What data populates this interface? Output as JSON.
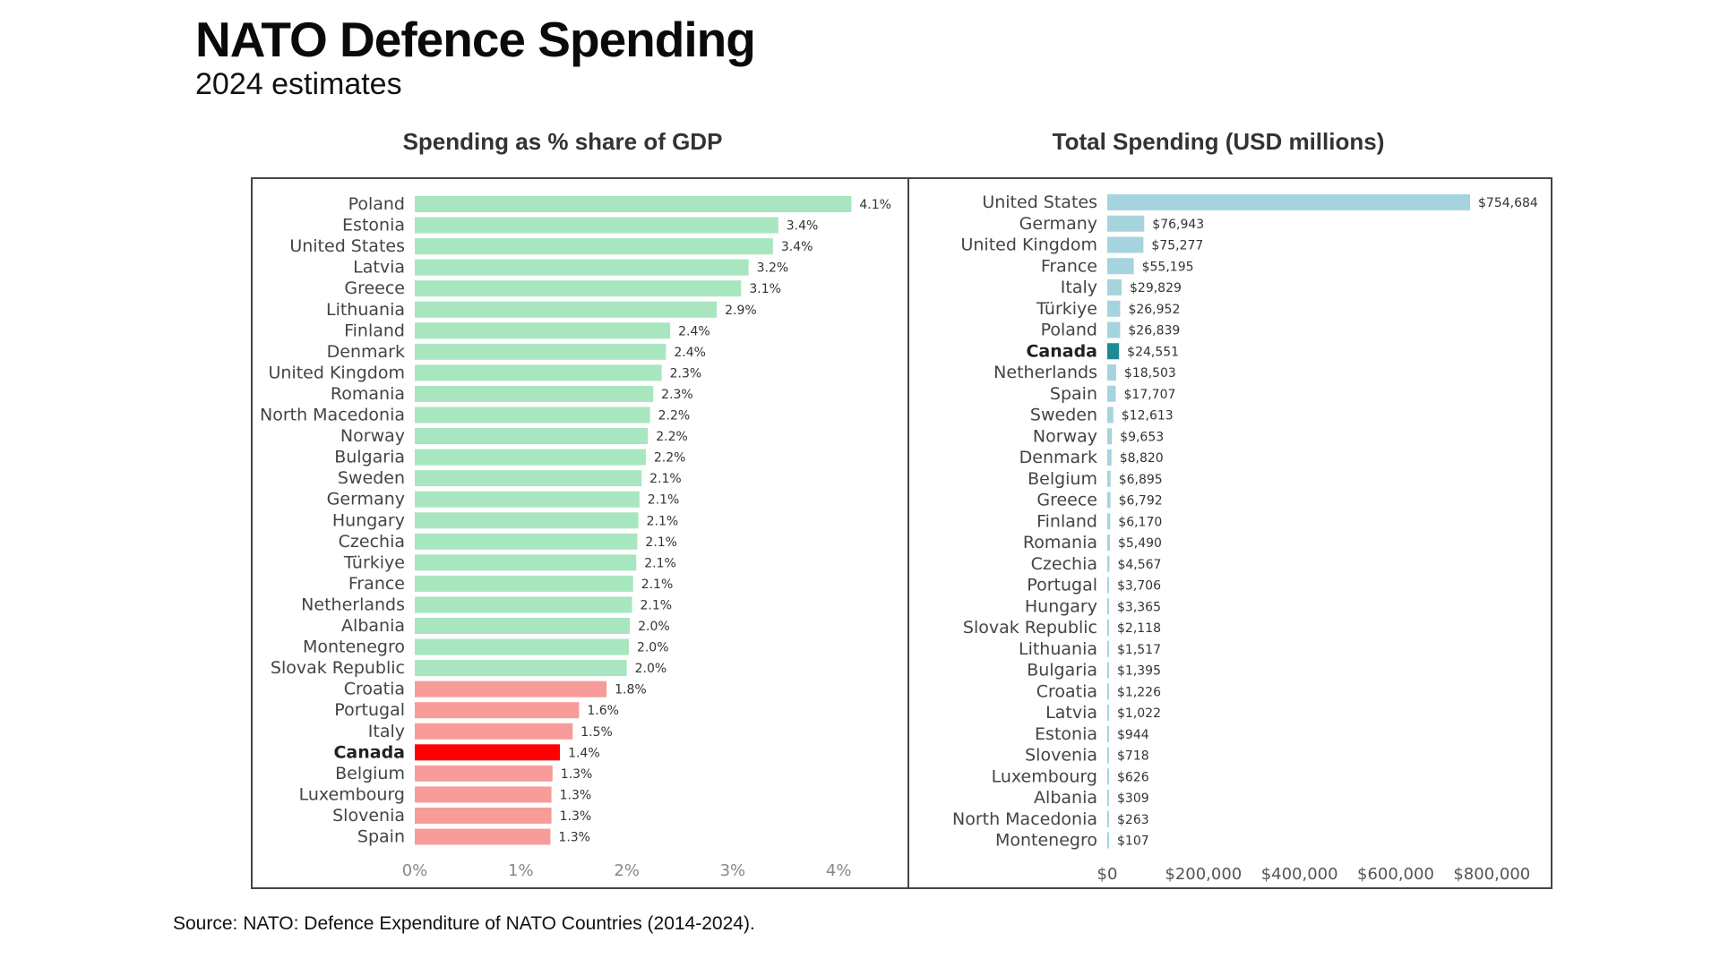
{
  "header": {
    "title": "NATO Defence Spending",
    "subtitle": "2024 estimates"
  },
  "footer": {
    "source": "Source: NATO: Defence Expenditure of NATO Countries (2014-2024)."
  },
  "colors": {
    "gdp_above_target": "#a8e6bf",
    "gdp_below_target": "#f79c98",
    "gdp_highlight": "#ff0000",
    "total_default": "#a6d4de",
    "total_highlight": "#1f8a93"
  },
  "chart_data": [
    {
      "type": "bar",
      "orientation": "horizontal",
      "title": "Spending as % share of GDP",
      "xlabel": "",
      "ylabel": "",
      "xlim": [
        0,
        4.2
      ],
      "x_ticks": [
        "0%",
        "1%",
        "2%",
        "3%",
        "4%"
      ],
      "x_tick_values": [
        0,
        1,
        2,
        3,
        4
      ],
      "highlight": "Canada",
      "threshold": 2.0,
      "categories": [
        "Poland",
        "Estonia",
        "United States",
        "Latvia",
        "Greece",
        "Lithuania",
        "Finland",
        "Denmark",
        "United Kingdom",
        "Romania",
        "North Macedonia",
        "Norway",
        "Bulgaria",
        "Sweden",
        "Germany",
        "Hungary",
        "Czechia",
        "Türkiye",
        "France",
        "Netherlands",
        "Albania",
        "Montenegro",
        "Slovak Republic",
        "Croatia",
        "Portugal",
        "Italy",
        "Canada",
        "Belgium",
        "Luxembourg",
        "Slovenia",
        "Spain"
      ],
      "values": [
        4.12,
        3.43,
        3.38,
        3.15,
        3.08,
        2.85,
        2.41,
        2.37,
        2.33,
        2.25,
        2.22,
        2.2,
        2.18,
        2.14,
        2.12,
        2.11,
        2.1,
        2.09,
        2.06,
        2.05,
        2.03,
        2.02,
        2.0,
        1.81,
        1.55,
        1.49,
        1.37,
        1.3,
        1.29,
        1.29,
        1.28
      ],
      "labels": [
        "4.1%",
        "3.4%",
        "3.4%",
        "3.2%",
        "3.1%",
        "2.9%",
        "2.4%",
        "2.4%",
        "2.3%",
        "2.3%",
        "2.2%",
        "2.2%",
        "2.2%",
        "2.1%",
        "2.1%",
        "2.1%",
        "2.1%",
        "2.1%",
        "2.1%",
        "2.1%",
        "2.0%",
        "2.0%",
        "2.0%",
        "1.8%",
        "1.6%",
        "1.5%",
        "1.4%",
        "1.3%",
        "1.3%",
        "1.3%",
        "1.3%"
      ],
      "legend": "none",
      "grid": false
    },
    {
      "type": "bar",
      "orientation": "horizontal",
      "title": "Total Spending (USD millions)",
      "xlabel": "",
      "ylabel": "",
      "xlim": [
        0,
        860000
      ],
      "x_ticks": [
        "$0",
        "$200,000",
        "$400,000",
        "$600,000",
        "$800,000"
      ],
      "x_tick_values": [
        0,
        200000,
        400000,
        600000,
        800000
      ],
      "highlight": "Canada",
      "categories": [
        "United States",
        "Germany",
        "United Kingdom",
        "France",
        "Italy",
        "Türkiye",
        "Poland",
        "Canada",
        "Netherlands",
        "Spain",
        "Sweden",
        "Norway",
        "Denmark",
        "Belgium",
        "Greece",
        "Finland",
        "Romania",
        "Czechia",
        "Portugal",
        "Hungary",
        "Slovak Republic",
        "Lithuania",
        "Bulgaria",
        "Croatia",
        "Latvia",
        "Estonia",
        "Slovenia",
        "Luxembourg",
        "Albania",
        "North Macedonia",
        "Montenegro"
      ],
      "values": [
        754684,
        76943,
        75277,
        55195,
        29829,
        26952,
        26839,
        24551,
        18503,
        17707,
        12613,
        9653,
        8820,
        6895,
        6792,
        6170,
        5490,
        4567,
        3706,
        3365,
        2118,
        1517,
        1395,
        1226,
        1022,
        944,
        718,
        626,
        309,
        263,
        107
      ],
      "labels": [
        "$754,684",
        "$76,943",
        "$75,277",
        "$55,195",
        "$29,829",
        "$26,952",
        "$26,839",
        "$24,551",
        "$18,503",
        "$17,707",
        "$12,613",
        "$9,653",
        "$8,820",
        "$6,895",
        "$6,792",
        "$6,170",
        "$5,490",
        "$4,567",
        "$3,706",
        "$3,365",
        "$2,118",
        "$1,517",
        "$1,395",
        "$1,226",
        "$1,022",
        "$944",
        "$718",
        "$626",
        "$309",
        "$263",
        "$107"
      ],
      "legend": "none",
      "grid": false
    }
  ]
}
